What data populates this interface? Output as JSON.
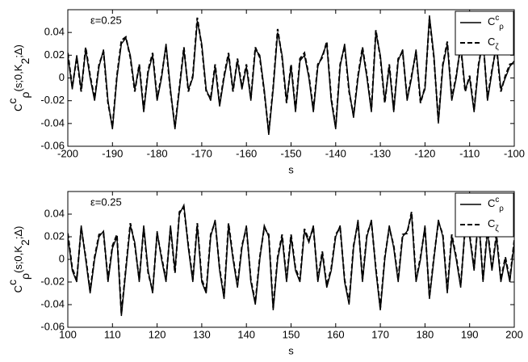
{
  "chart_data": [
    {
      "type": "line",
      "annotation": "ε=0.25",
      "xlabel": "s",
      "ylabel": [
        {
          "text": "C"
        },
        {
          "text": "c",
          "style": "sup"
        },
        {
          "text": "ρ",
          "style": "sub"
        },
        {
          "text": "(s;0,K"
        },
        {
          "text": "2",
          "style": "sub"
        },
        {
          "text": ";Δ)"
        }
      ],
      "xlim": [
        -200,
        -100
      ],
      "ylim": [
        -0.06,
        0.06
      ],
      "xticks": [
        -200,
        -190,
        -180,
        -170,
        -160,
        -150,
        -140,
        -130,
        -120,
        -110,
        -100
      ],
      "yticks": [
        -0.06,
        -0.04,
        -0.02,
        0,
        0.02,
        0.04
      ],
      "legend": "upper right",
      "x": [
        -200,
        -199,
        -198,
        -197,
        -196,
        -195,
        -194,
        -193,
        -192,
        -191,
        -190,
        -189,
        -188,
        -187,
        -186,
        -185,
        -184,
        -183,
        -182,
        -181,
        -180,
        -179,
        -178,
        -177,
        -176,
        -175,
        -174,
        -173,
        -172,
        -171,
        -170,
        -169,
        -168,
        -167,
        -166,
        -165,
        -164,
        -163,
        -162,
        -161,
        -160,
        -159,
        -158,
        -157,
        -156,
        -155,
        -154,
        -153,
        -152,
        -151,
        -150,
        -149,
        -148,
        -147,
        -146,
        -145,
        -144,
        -143,
        -142,
        -141,
        -140,
        -139,
        -138,
        -137,
        -136,
        -135,
        -134,
        -133,
        -132,
        -131,
        -130,
        -129,
        -128,
        -127,
        -126,
        -125,
        -124,
        -123,
        -122,
        -121,
        -120,
        -119,
        -118,
        -117,
        -116,
        -115,
        -114,
        -113,
        -112,
        -111,
        -110,
        -109,
        -108,
        -107,
        -106,
        -105,
        -104,
        -103,
        -102,
        -101,
        -100
      ],
      "series": [
        {
          "name": [
            {
              "text": "C"
            },
            {
              "text": "c",
              "style": "sup"
            },
            {
              "text": "ρ",
              "style": "sub"
            }
          ],
          "color": "#000000",
          "dash": "solid",
          "values": [
            0.02,
            -0.01,
            0.02,
            -0.01,
            0.025,
            0.0,
            -0.02,
            0.01,
            0.025,
            -0.02,
            -0.045,
            0.0,
            0.03,
            0.035,
            0.02,
            -0.01,
            0.01,
            -0.03,
            0.005,
            0.02,
            -0.02,
            0.0,
            0.03,
            -0.01,
            -0.045,
            -0.01,
            0.025,
            -0.01,
            0.0,
            0.05,
            0.03,
            -0.01,
            -0.02,
            0.01,
            -0.025,
            0.0,
            0.02,
            -0.01,
            0.015,
            -0.01,
            0.01,
            -0.02,
            0.025,
            0.02,
            -0.01,
            -0.05,
            -0.01,
            0.04,
            0.02,
            -0.02,
            0.01,
            -0.03,
            0.015,
            0.02,
            0.0,
            -0.03,
            0.01,
            0.02,
            0.03,
            -0.02,
            -0.045,
            0.01,
            0.03,
            -0.01,
            -0.035,
            0.0,
            0.025,
            0.0,
            -0.03,
            0.04,
            0.02,
            -0.02,
            0.01,
            -0.03,
            0.015,
            0.025,
            -0.02,
            0.0,
            0.025,
            -0.02,
            -0.01,
            0.055,
            0.02,
            -0.04,
            0.01,
            0.03,
            -0.02,
            0.0,
            0.03,
            -0.01,
            0.0,
            -0.03,
            0.01,
            0.035,
            -0.02,
            0.005,
            0.03,
            -0.01,
            0.0,
            0.01,
            0.015
          ]
        },
        {
          "name": [
            {
              "text": "C"
            },
            {
              "text": "ζ",
              "style": "sub"
            }
          ],
          "color": "#000000",
          "dash": "dashed",
          "values": [
            0.022,
            -0.008,
            0.018,
            -0.012,
            0.027,
            0.002,
            -0.018,
            0.012,
            0.023,
            -0.022,
            -0.043,
            0.002,
            0.033,
            0.036,
            0.018,
            -0.012,
            0.012,
            -0.028,
            0.007,
            0.022,
            -0.018,
            0.002,
            0.028,
            -0.012,
            -0.043,
            -0.008,
            0.027,
            -0.012,
            0.002,
            0.053,
            0.028,
            -0.012,
            -0.018,
            0.012,
            -0.023,
            0.002,
            0.022,
            -0.012,
            0.017,
            -0.008,
            0.012,
            -0.018,
            0.027,
            0.018,
            -0.012,
            -0.048,
            -0.008,
            0.043,
            0.018,
            -0.022,
            0.012,
            -0.028,
            0.017,
            0.022,
            0.002,
            -0.028,
            0.012,
            0.018,
            0.032,
            -0.018,
            -0.043,
            0.012,
            0.028,
            -0.012,
            -0.033,
            0.002,
            0.027,
            0.002,
            -0.028,
            0.042,
            0.018,
            -0.022,
            0.012,
            -0.028,
            0.017,
            0.023,
            -0.018,
            0.002,
            0.023,
            -0.022,
            -0.008,
            0.052,
            0.018,
            -0.038,
            0.012,
            0.032,
            -0.018,
            0.002,
            0.028,
            -0.012,
            0.002,
            -0.028,
            0.012,
            0.033,
            -0.018,
            0.007,
            0.028,
            -0.012,
            0.002,
            0.012,
            0.013
          ]
        }
      ]
    },
    {
      "type": "line",
      "annotation": "ε=0.25",
      "xlabel": "s",
      "ylabel": [
        {
          "text": "C"
        },
        {
          "text": "c",
          "style": "sup"
        },
        {
          "text": "ρ",
          "style": "sub"
        },
        {
          "text": "(s;0,K"
        },
        {
          "text": "2",
          "style": "sub"
        },
        {
          "text": ";Δ)"
        }
      ],
      "xlim": [
        100,
        200
      ],
      "ylim": [
        -0.06,
        0.06
      ],
      "xticks": [
        100,
        110,
        120,
        130,
        140,
        150,
        160,
        170,
        180,
        190,
        200
      ],
      "yticks": [
        -0.06,
        -0.04,
        -0.02,
        0,
        0.02,
        0.04
      ],
      "legend": "upper right",
      "x": [
        100,
        101,
        102,
        103,
        104,
        105,
        106,
        107,
        108,
        109,
        110,
        111,
        112,
        113,
        114,
        115,
        116,
        117,
        118,
        119,
        120,
        121,
        122,
        123,
        124,
        125,
        126,
        127,
        128,
        129,
        130,
        131,
        132,
        133,
        134,
        135,
        136,
        137,
        138,
        139,
        140,
        141,
        142,
        143,
        144,
        145,
        146,
        147,
        148,
        149,
        150,
        151,
        152,
        153,
        154,
        155,
        156,
        157,
        158,
        159,
        160,
        161,
        162,
        163,
        164,
        165,
        166,
        167,
        168,
        169,
        170,
        171,
        172,
        173,
        174,
        175,
        176,
        177,
        178,
        179,
        180,
        181,
        182,
        183,
        184,
        185,
        186,
        187,
        188,
        189,
        190,
        191,
        192,
        193,
        194,
        195,
        196,
        197,
        198,
        199,
        200
      ],
      "series": [
        {
          "name": [
            {
              "text": "C"
            },
            {
              "text": "c",
              "style": "sup"
            },
            {
              "text": "ρ",
              "style": "sub"
            }
          ],
          "color": "#000000",
          "dash": "solid",
          "values": [
            0.02,
            -0.01,
            -0.02,
            0.03,
            0.0,
            -0.03,
            0.0,
            0.02,
            0.025,
            -0.02,
            0.01,
            0.02,
            -0.05,
            -0.01,
            0.03,
            0.015,
            -0.02,
            0.03,
            -0.01,
            -0.03,
            0.025,
            0.0,
            -0.02,
            0.03,
            -0.01,
            0.04,
            0.048,
            0.01,
            -0.02,
            0.03,
            -0.02,
            -0.03,
            0.02,
            0.035,
            -0.01,
            -0.035,
            0.03,
            0.0,
            -0.025,
            0.01,
            0.03,
            -0.02,
            -0.04,
            0.0,
            0.03,
            0.02,
            -0.045,
            0.0,
            0.02,
            -0.02,
            0.02,
            -0.01,
            -0.02,
            0.025,
            0.015,
            0.03,
            -0.02,
            0.005,
            -0.025,
            -0.01,
            0.02,
            0.03,
            -0.02,
            -0.04,
            0.01,
            0.035,
            -0.02,
            0.02,
            0.035,
            -0.01,
            -0.045,
            0.0,
            0.03,
            0.01,
            -0.02,
            0.02,
            0.025,
            0.04,
            -0.02,
            0.0,
            0.03,
            -0.035,
            0.0,
            0.035,
            0.02,
            -0.03,
            0.02,
            0.0,
            -0.025,
            0.03,
            0.02,
            -0.01,
            0.04,
            -0.02,
            0.025,
            -0.01,
            0.02,
            -0.02,
            0.0,
            -0.02,
            0.015
          ]
        },
        {
          "name": [
            {
              "text": "C"
            },
            {
              "text": "ζ",
              "style": "sub"
            }
          ],
          "color": "#000000",
          "dash": "dashed",
          "values": [
            0.023,
            -0.008,
            -0.018,
            0.028,
            0.002,
            -0.028,
            0.002,
            0.022,
            0.023,
            -0.018,
            0.012,
            0.022,
            -0.048,
            -0.008,
            0.032,
            0.013,
            -0.018,
            0.028,
            -0.012,
            -0.028,
            0.023,
            0.002,
            -0.018,
            0.028,
            -0.012,
            0.042,
            0.046,
            0.012,
            -0.018,
            0.032,
            -0.018,
            -0.028,
            0.022,
            0.033,
            -0.008,
            -0.033,
            0.032,
            0.002,
            -0.023,
            0.012,
            0.028,
            -0.018,
            -0.038,
            0.002,
            0.028,
            0.022,
            -0.043,
            0.002,
            0.022,
            -0.018,
            0.022,
            -0.008,
            -0.018,
            0.027,
            0.017,
            0.028,
            -0.018,
            0.007,
            -0.023,
            -0.008,
            0.022,
            0.028,
            -0.018,
            -0.038,
            0.012,
            0.033,
            -0.018,
            0.022,
            0.033,
            -0.008,
            -0.043,
            0.002,
            0.028,
            0.012,
            -0.018,
            0.022,
            0.023,
            0.042,
            -0.018,
            0.002,
            0.028,
            -0.033,
            0.002,
            0.033,
            0.022,
            -0.028,
            0.022,
            0.002,
            -0.023,
            0.028,
            0.022,
            -0.008,
            0.038,
            -0.018,
            0.027,
            -0.008,
            0.022,
            -0.018,
            0.002,
            -0.018,
            0.017
          ]
        }
      ]
    }
  ]
}
